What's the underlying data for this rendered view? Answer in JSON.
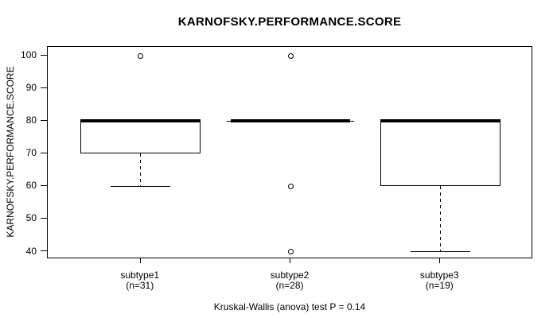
{
  "chart_data": {
    "type": "boxplot",
    "title": "KARNOFSKY.PERFORMANCE.SCORE",
    "ylabel": "KARNOFSKY.PERFORMANCE.SCORE",
    "caption": "Kruskal-Wallis (anova) test P = 0.14",
    "ylim": [
      37.7,
      102.7
    ],
    "yticks": [
      40,
      50,
      60,
      70,
      80,
      90,
      100
    ],
    "grid": false,
    "legend": null,
    "groups": [
      {
        "label": "subtype1",
        "n_label": "(n=31)",
        "n": 31,
        "q1": 70,
        "median": 80,
        "q3": 80,
        "whisker_low": 60,
        "whisker_high": 80,
        "outliers": [
          100
        ]
      },
      {
        "label": "subtype2",
        "n_label": "(n=28)",
        "n": 28,
        "q1": 80,
        "median": 80,
        "q3": 80,
        "whisker_low": 80,
        "whisker_high": 80,
        "outliers": [
          100,
          60,
          40
        ]
      },
      {
        "label": "subtype3",
        "n_label": "(n=19)",
        "n": 19,
        "q1": 60,
        "median": 80,
        "q3": 80,
        "whisker_low": 40,
        "whisker_high": 80,
        "outliers": []
      }
    ],
    "test": {
      "name": "Kruskal-Wallis (anova) test",
      "p_value": "0.14"
    }
  },
  "colors": {
    "foreground": "#000000",
    "background": "#ffffff"
  }
}
